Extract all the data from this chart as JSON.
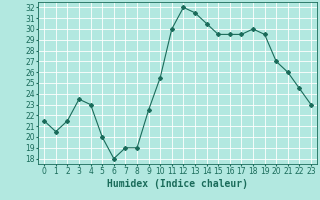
{
  "x": [
    0,
    1,
    2,
    3,
    4,
    5,
    6,
    7,
    8,
    9,
    10,
    11,
    12,
    13,
    14,
    15,
    16,
    17,
    18,
    19,
    20,
    21,
    22,
    23
  ],
  "y": [
    21.5,
    20.5,
    21.5,
    23.5,
    23.0,
    20.0,
    18.0,
    19.0,
    19.0,
    22.5,
    25.5,
    30.0,
    32.0,
    31.5,
    30.5,
    29.5,
    29.5,
    29.5,
    30.0,
    29.5,
    27.0,
    26.0,
    24.5,
    23.0
  ],
  "line_color": "#1a6b5a",
  "marker": "D",
  "marker_size": 2,
  "bg_color": "#b2e8e0",
  "grid_color": "#ffffff",
  "xlabel": "Humidex (Indice chaleur)",
  "xlim": [
    -0.5,
    23.5
  ],
  "ylim": [
    17.5,
    32.5
  ],
  "yticks": [
    18,
    19,
    20,
    21,
    22,
    23,
    24,
    25,
    26,
    27,
    28,
    29,
    30,
    31,
    32
  ],
  "xtick_labels": [
    "0",
    "1",
    "2",
    "3",
    "4",
    "5",
    "6",
    "7",
    "8",
    "9",
    "10",
    "11",
    "12",
    "13",
    "14",
    "15",
    "16",
    "17",
    "18",
    "19",
    "20",
    "21",
    "22",
    "23"
  ],
  "tick_color": "#1a6b5a",
  "label_color": "#1a6b5a",
  "xlabel_fontsize": 7,
  "tick_fontsize": 5.5
}
